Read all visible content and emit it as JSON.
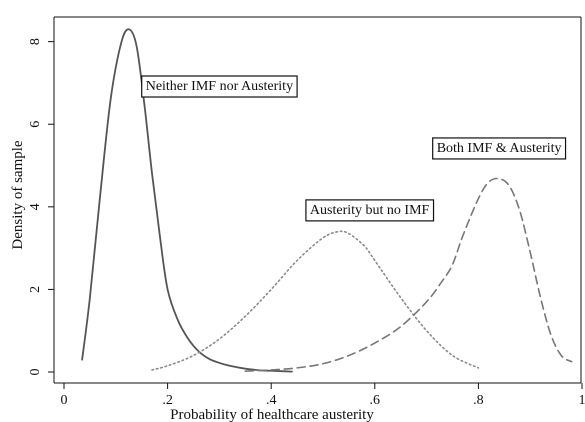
{
  "chart_data": {
    "type": "line",
    "title": "",
    "xlabel": "Probability of healthcare austerity",
    "ylabel": "Density of sample",
    "xlim": [
      0,
      1
    ],
    "ylim": [
      0,
      8.5
    ],
    "grid": false,
    "xticks": [
      0,
      0.2,
      0.4,
      0.6,
      0.8,
      1
    ],
    "xtick_labels": [
      "0",
      ".2",
      ".4",
      ".6",
      ".8",
      "1"
    ],
    "yticks": [
      0,
      2,
      4,
      6,
      8
    ],
    "ytick_labels": [
      "0",
      "2",
      "4",
      "6",
      "8"
    ],
    "series": [
      {
        "name": "Neither IMF nor Austerity",
        "style": "solid",
        "color": "#555555",
        "x": [
          0.035,
          0.05,
          0.07,
          0.09,
          0.11,
          0.125,
          0.14,
          0.155,
          0.17,
          0.185,
          0.2,
          0.22,
          0.24,
          0.26,
          0.28,
          0.3,
          0.32,
          0.35,
          0.38,
          0.4,
          0.42,
          0.44
        ],
        "y": [
          0.3,
          1.8,
          4.3,
          6.6,
          7.95,
          8.3,
          7.9,
          6.5,
          4.8,
          3.3,
          2.0,
          1.25,
          0.8,
          0.5,
          0.32,
          0.22,
          0.15,
          0.08,
          0.04,
          0.03,
          0.02,
          0.01
        ]
      },
      {
        "name": "Austerity but no IMF",
        "style": "dotted",
        "color": "#8a8a8a",
        "x": [
          0.17,
          0.2,
          0.25,
          0.3,
          0.35,
          0.4,
          0.45,
          0.5,
          0.53,
          0.55,
          0.58,
          0.6,
          0.65,
          0.7,
          0.75,
          0.8
        ],
        "y": [
          0.05,
          0.15,
          0.4,
          0.8,
          1.35,
          2.0,
          2.7,
          3.25,
          3.4,
          3.35,
          3.05,
          2.7,
          1.8,
          1.0,
          0.4,
          0.1
        ]
      },
      {
        "name": "Both IMF & Austerity",
        "style": "dashed",
        "color": "#777777",
        "x": [
          0.35,
          0.4,
          0.45,
          0.5,
          0.55,
          0.6,
          0.65,
          0.7,
          0.73,
          0.75,
          0.77,
          0.8,
          0.82,
          0.84,
          0.86,
          0.88,
          0.9,
          0.92,
          0.94,
          0.96,
          0.98
        ],
        "y": [
          0.02,
          0.05,
          0.1,
          0.2,
          0.4,
          0.7,
          1.1,
          1.7,
          2.2,
          2.6,
          3.3,
          4.2,
          4.6,
          4.68,
          4.5,
          3.9,
          2.9,
          1.8,
          0.9,
          0.4,
          0.25
        ]
      }
    ],
    "annotations": [
      {
        "text": "Neither IMF nor Austerity",
        "x": 0.3,
        "y": 6.95
      },
      {
        "text": "Austerity but no IMF",
        "x": 0.59,
        "y": 3.95
      },
      {
        "text": "Both IMF & Austerity",
        "x": 0.84,
        "y": 5.45
      }
    ]
  }
}
